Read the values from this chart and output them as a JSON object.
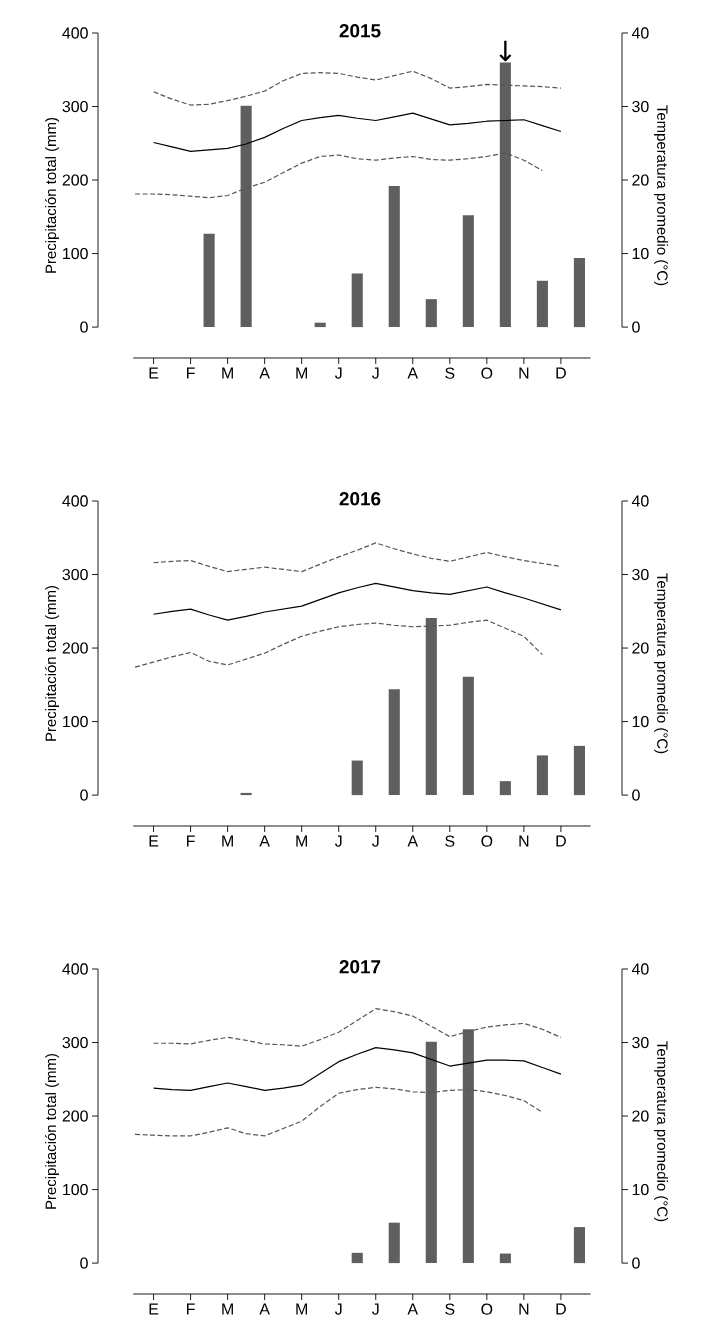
{
  "chart_data": [
    {
      "type": "bar",
      "title": "2015",
      "ylabel": "Precipitación total (mm)",
      "y2label": "Temperatura promedio (°C)",
      "categories": [
        null,
        "E",
        null,
        "F",
        null,
        "M",
        null,
        "A",
        null,
        "M",
        null,
        "J",
        null,
        "J",
        null,
        "A",
        null,
        "S",
        null,
        "O",
        null,
        "N",
        null,
        "D",
        null
      ],
      "ylim": [
        0,
        400
      ],
      "yticks": [
        0,
        100,
        200,
        300,
        400
      ],
      "y2lim": [
        0,
        40
      ],
      "y2ticks": [
        0,
        10,
        20,
        30,
        40
      ],
      "series": [
        {
          "color": "#5f5f5f",
          "values": [
            null,
            null,
            null,
            null,
            127,
            null,
            301,
            null,
            null,
            null,
            6,
            null,
            73,
            null,
            192,
            null,
            38,
            null,
            152,
            null,
            360,
            null,
            63,
            null,
            94
          ]
        },
        {
          "type": "line",
          "axis": "y2",
          "color": "#000000",
          "line_style": "solid",
          "values": [
            null,
            25.1,
            24.5,
            23.9,
            24.1,
            24.3,
            24.9,
            25.8,
            27.0,
            28.1,
            28.5,
            28.8,
            28.4,
            28.1,
            28.6,
            29.1,
            28.3,
            27.5,
            27.7,
            28.0,
            28.1,
            28.2,
            27.4,
            26.6,
            null
          ]
        },
        {
          "type": "line",
          "axis": "y2",
          "color": "#555555",
          "line_style": "dashed",
          "values": [
            null,
            32.0,
            31.0,
            30.2,
            30.3,
            30.8,
            31.4,
            32.1,
            33.5,
            34.5,
            34.6,
            34.5,
            34.0,
            33.6,
            34.2,
            34.8,
            33.8,
            32.5,
            32.7,
            33.0,
            32.9,
            32.8,
            32.7,
            32.5,
            null
          ]
        },
        {
          "type": "line",
          "axis": "y2",
          "color": "#555555",
          "line_style": "dashed",
          "values": [
            18.1,
            18.1,
            18.0,
            17.8,
            17.6,
            17.9,
            18.9,
            19.7,
            21.0,
            22.3,
            23.2,
            23.4,
            22.9,
            22.7,
            23.0,
            23.2,
            22.8,
            22.7,
            22.9,
            23.2,
            23.7,
            22.7,
            21.3,
            null,
            null
          ]
        }
      ],
      "annotations": [
        {
          "text": "↓",
          "y": 360
        }
      ]
    },
    {
      "type": "bar",
      "title": "2016",
      "ylabel": "Precipitación total (mm)",
      "y2label": "Temperatura promedio (°C)",
      "categories": [
        null,
        "E",
        null,
        "F",
        null,
        "M",
        null,
        "A",
        null,
        "M",
        null,
        "J",
        null,
        "J",
        null,
        "A",
        null,
        "S",
        null,
        "O",
        null,
        "N",
        null,
        "D",
        null
      ],
      "ylim": [
        0,
        400
      ],
      "yticks": [
        0,
        100,
        200,
        300,
        400
      ],
      "y2lim": [
        0,
        40
      ],
      "y2ticks": [
        0,
        10,
        20,
        30,
        40
      ],
      "series": [
        {
          "color": "#5f5f5f",
          "values": [
            null,
            null,
            null,
            null,
            null,
            null,
            3,
            null,
            null,
            null,
            null,
            null,
            47,
            null,
            144,
            null,
            241,
            null,
            161,
            null,
            19,
            null,
            54,
            null,
            67
          ]
        },
        {
          "type": "line",
          "axis": "y2",
          "color": "#000000",
          "line_style": "solid",
          "values": [
            null,
            24.6,
            25.0,
            25.3,
            24.5,
            23.8,
            24.3,
            24.9,
            25.3,
            25.7,
            26.6,
            27.5,
            28.2,
            28.8,
            28.3,
            27.8,
            27.5,
            27.3,
            27.8,
            28.3,
            27.5,
            26.8,
            26.0,
            25.2,
            null
          ]
        },
        {
          "type": "line",
          "axis": "y2",
          "color": "#555555",
          "line_style": "dashed",
          "values": [
            null,
            31.6,
            31.8,
            31.9,
            31.1,
            30.4,
            30.7,
            31.0,
            30.7,
            30.4,
            31.4,
            32.4,
            33.3,
            34.3,
            33.5,
            32.8,
            32.2,
            31.8,
            32.4,
            33.0,
            32.4,
            31.9,
            31.5,
            31.1,
            null
          ]
        },
        {
          "type": "line",
          "axis": "y2",
          "color": "#555555",
          "line_style": "dashed",
          "values": [
            17.4,
            18.1,
            18.8,
            19.4,
            18.2,
            17.7,
            18.5,
            19.3,
            20.5,
            21.6,
            22.3,
            22.9,
            23.2,
            23.4,
            23.1,
            22.9,
            23.0,
            23.1,
            23.5,
            23.8,
            22.7,
            21.6,
            19.1,
            null,
            null
          ]
        }
      ]
    },
    {
      "type": "bar",
      "title": "2017",
      "ylabel": "Precipitación total (mm)",
      "y2label": "Temperatura promedio (°C)",
      "categories": [
        null,
        "E",
        null,
        "F",
        null,
        "M",
        null,
        "A",
        null,
        "M",
        null,
        "J",
        null,
        "J",
        null,
        "A",
        null,
        "S",
        null,
        "O",
        null,
        "N",
        null,
        "D",
        null
      ],
      "ylim": [
        0,
        400
      ],
      "yticks": [
        0,
        100,
        200,
        300,
        400
      ],
      "y2lim": [
        0,
        40
      ],
      "y2ticks": [
        0,
        10,
        20,
        30,
        40
      ],
      "series": [
        {
          "color": "#5f5f5f",
          "values": [
            null,
            null,
            null,
            null,
            null,
            null,
            null,
            null,
            null,
            null,
            null,
            null,
            14,
            null,
            55,
            null,
            301,
            null,
            318,
            null,
            13,
            null,
            null,
            null,
            49
          ]
        },
        {
          "type": "line",
          "axis": "y2",
          "color": "#000000",
          "line_style": "solid",
          "values": [
            null,
            23.8,
            23.6,
            23.5,
            24.0,
            24.5,
            24.0,
            23.5,
            23.8,
            24.2,
            25.8,
            27.4,
            28.4,
            29.3,
            29.0,
            28.6,
            27.7,
            26.8,
            27.2,
            27.6,
            27.6,
            27.5,
            26.6,
            25.7,
            null
          ]
        },
        {
          "type": "line",
          "axis": "y2",
          "color": "#555555",
          "line_style": "dashed",
          "values": [
            null,
            29.9,
            29.9,
            29.8,
            30.3,
            30.7,
            30.3,
            29.8,
            29.7,
            29.5,
            30.4,
            31.4,
            33.0,
            34.6,
            34.2,
            33.6,
            32.2,
            30.8,
            31.5,
            32.1,
            32.4,
            32.6,
            31.8,
            30.7,
            null
          ]
        },
        {
          "type": "line",
          "axis": "y2",
          "color": "#555555",
          "line_style": "dashed",
          "values": [
            17.5,
            17.4,
            17.3,
            17.3,
            17.8,
            18.4,
            17.6,
            17.3,
            18.3,
            19.3,
            21.3,
            23.1,
            23.6,
            23.9,
            23.7,
            23.3,
            23.2,
            23.5,
            23.6,
            23.3,
            22.8,
            22.1,
            20.5,
            null,
            null
          ]
        }
      ]
    }
  ]
}
